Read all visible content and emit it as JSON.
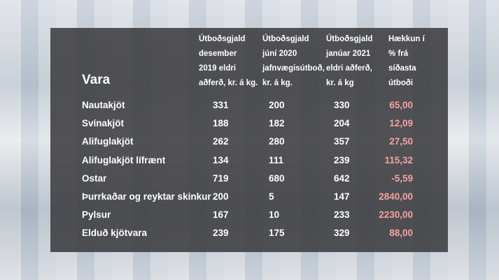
{
  "table": {
    "first_header": "Vara",
    "headers": [
      [
        "Útboðsgjald",
        "desember",
        "2019 eldri",
        "aðferð, kr. á kg."
      ],
      [
        "Útboðsgjald",
        "júní 2020",
        "jafnvægisútboð,",
        "kr. á kg."
      ],
      [
        "Útboðsgjald",
        "janúar 2021",
        "eldri aðferð,",
        "kr. á kg"
      ],
      [
        "Hækkun í",
        "% frá",
        "síðasta",
        "útboði"
      ]
    ],
    "rows": [
      [
        "Nautakjöt",
        "331",
        "200",
        "330",
        "65,00"
      ],
      [
        "Svínakjöt",
        "188",
        "182",
        "204",
        "12,09"
      ],
      [
        "Alifuglakjöt",
        "262",
        "280",
        "357",
        "27,50"
      ],
      [
        "Alifuglakjöt lífrænt",
        "134",
        "111",
        "239",
        "115,32"
      ],
      [
        "Ostar",
        "719",
        "680",
        "642",
        "-5,59"
      ],
      [
        "Þurrkaðar og reyktar skinkur",
        "200",
        "5",
        "147",
        "2840,00"
      ],
      [
        "Pylsur",
        "167",
        "10",
        "233",
        "2230,00"
      ],
      [
        "Elduð kjötvara",
        "239",
        "175",
        "329",
        "88,00"
      ]
    ]
  }
}
